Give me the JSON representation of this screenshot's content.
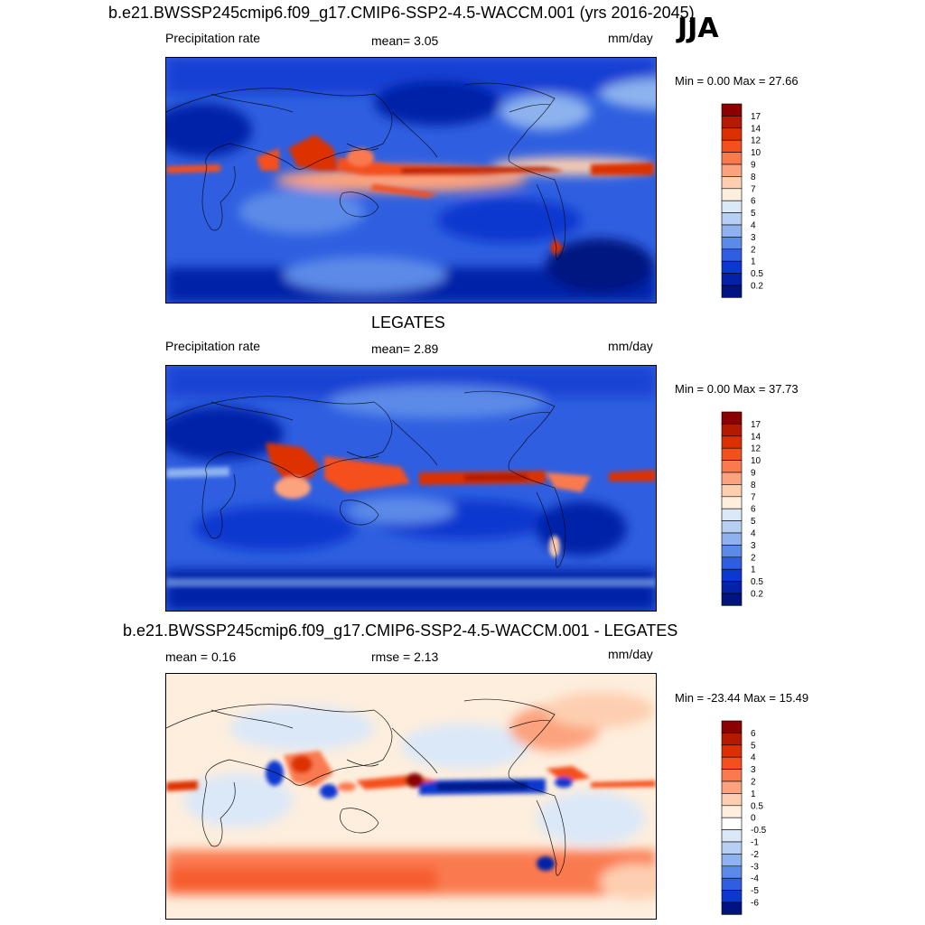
{
  "season": "JJA",
  "panels": [
    {
      "id": "model",
      "title": "b.e21.BWSSP245cmip6.f09_g17.CMIP6-SSP2-4.5-WACCM.001 (yrs 2016-2045)",
      "left_label": "Precipitation rate",
      "center_label": "mean=   3.05",
      "units": "mm/day",
      "minmax": "Min =   0.00 Max =  27.66",
      "colorbar": {
        "levels": [
          "17",
          "14",
          "12",
          "10",
          "9",
          "8",
          "7",
          "6",
          "5",
          "4",
          "3",
          "2",
          "1",
          "0.5",
          "0.2"
        ],
        "colors": [
          "#8b0000",
          "#b31a00",
          "#dd3000",
          "#f4501e",
          "#fa7a50",
          "#fca27e",
          "#fdcfb0",
          "#fdeedd",
          "#dbe8f8",
          "#b6cff3",
          "#8db2ee",
          "#5c8ae8",
          "#2f5fe0",
          "#0b38cf",
          "#0521a8",
          "#001380"
        ]
      }
    },
    {
      "id": "obs",
      "title": "LEGATES",
      "left_label": "Precipitation rate",
      "center_label": "mean=   2.89",
      "units": "mm/day",
      "minmax": "Min =   0.00 Max =  37.73",
      "colorbar": {
        "levels": [
          "17",
          "14",
          "12",
          "10",
          "9",
          "8",
          "7",
          "6",
          "5",
          "4",
          "3",
          "2",
          "1",
          "0.5",
          "0.2"
        ],
        "colors": [
          "#8b0000",
          "#b31a00",
          "#dd3000",
          "#f4501e",
          "#fa7a50",
          "#fca27e",
          "#fdcfb0",
          "#fdeedd",
          "#dbe8f8",
          "#b6cff3",
          "#8db2ee",
          "#5c8ae8",
          "#2f5fe0",
          "#0b38cf",
          "#0521a8",
          "#001380"
        ]
      }
    },
    {
      "id": "diff",
      "title": "b.e21.BWSSP245cmip6.f09_g17.CMIP6-SSP2-4.5-WACCM.001 - LEGATES",
      "left_label": "mean =   0.16",
      "center_label": "rmse =   2.13",
      "units": "mm/day",
      "minmax": "Min = -23.44 Max =  15.49",
      "colorbar": {
        "levels": [
          "6",
          "5",
          "4",
          "3",
          "2",
          "1",
          "0.5",
          "0",
          "-0.5",
          "-1",
          "-2",
          "-3",
          "-4",
          "-5",
          "-6"
        ],
        "colors": [
          "#8b0000",
          "#b31a00",
          "#dd3000",
          "#f4501e",
          "#fa7a50",
          "#fca27e",
          "#fdcfb0",
          "#fdeedd",
          "#ffffff",
          "#dbe8f8",
          "#b6cff3",
          "#8db2ee",
          "#5c8ae8",
          "#2f5fe0",
          "#0b38cf",
          "#001380"
        ]
      }
    }
  ]
}
